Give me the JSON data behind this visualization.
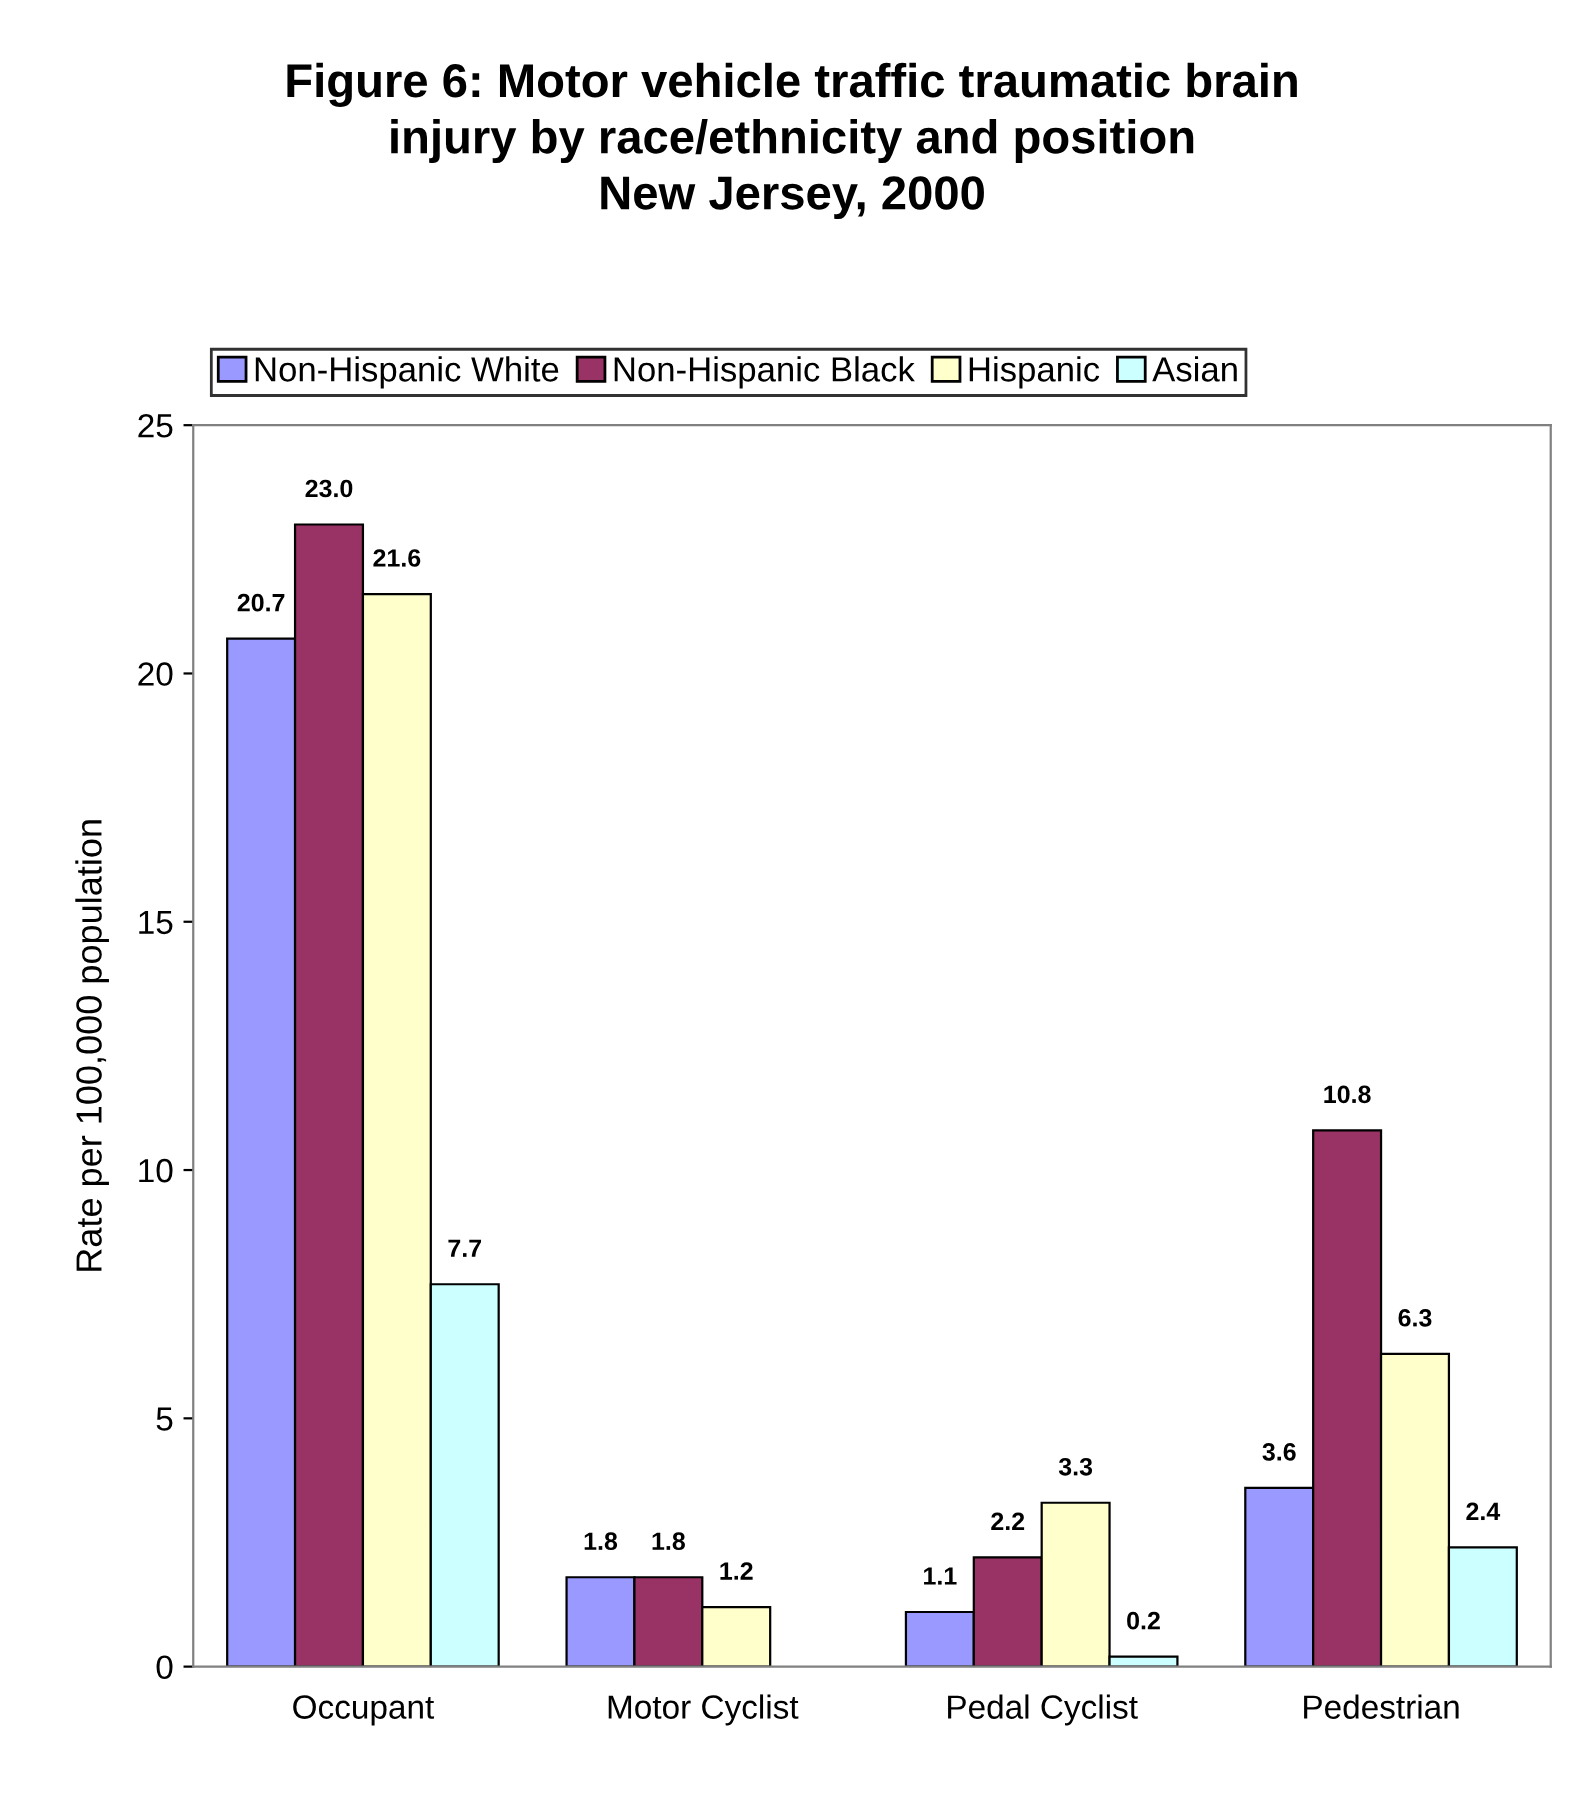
{
  "chart_data": {
    "type": "bar",
    "title": "Figure 6: Motor vehicle traffic traumatic brain\ninjury by race/ethnicity and position\nNew Jersey, 2000",
    "ylabel": "Rate per 100,000 population",
    "categories": [
      "Occupant",
      "Motor Cyclist",
      "Pedal Cyclist",
      "Pedestrian"
    ],
    "series": [
      {
        "name": "Non-Hispanic White",
        "color": "#9999ff",
        "values": [
          20.7,
          1.8,
          1.1,
          3.6
        ],
        "value_labels": [
          "20.7",
          "1.8",
          "1.1",
          "3.6"
        ]
      },
      {
        "name": "Non-Hispanic Black",
        "color": "#993366",
        "values": [
          23.0,
          1.8,
          2.2,
          10.8
        ],
        "value_labels": [
          "23.0",
          "1.8",
          "2.2",
          "10.8"
        ]
      },
      {
        "name": "Hispanic",
        "color": "#ffffcc",
        "values": [
          21.6,
          1.2,
          3.3,
          6.3
        ],
        "value_labels": [
          "21.6",
          "1.2",
          "3.3",
          "6.3"
        ]
      },
      {
        "name": "Asian",
        "color": "#ccffff",
        "values": [
          7.7,
          null,
          0.2,
          2.4
        ],
        "value_labels": [
          "7.7",
          null,
          "0.2",
          "2.4"
        ]
      }
    ],
    "ylim": [
      0,
      25
    ],
    "yticks": [
      0,
      5,
      10,
      15,
      20,
      25
    ],
    "grid": false,
    "legend": "top"
  }
}
